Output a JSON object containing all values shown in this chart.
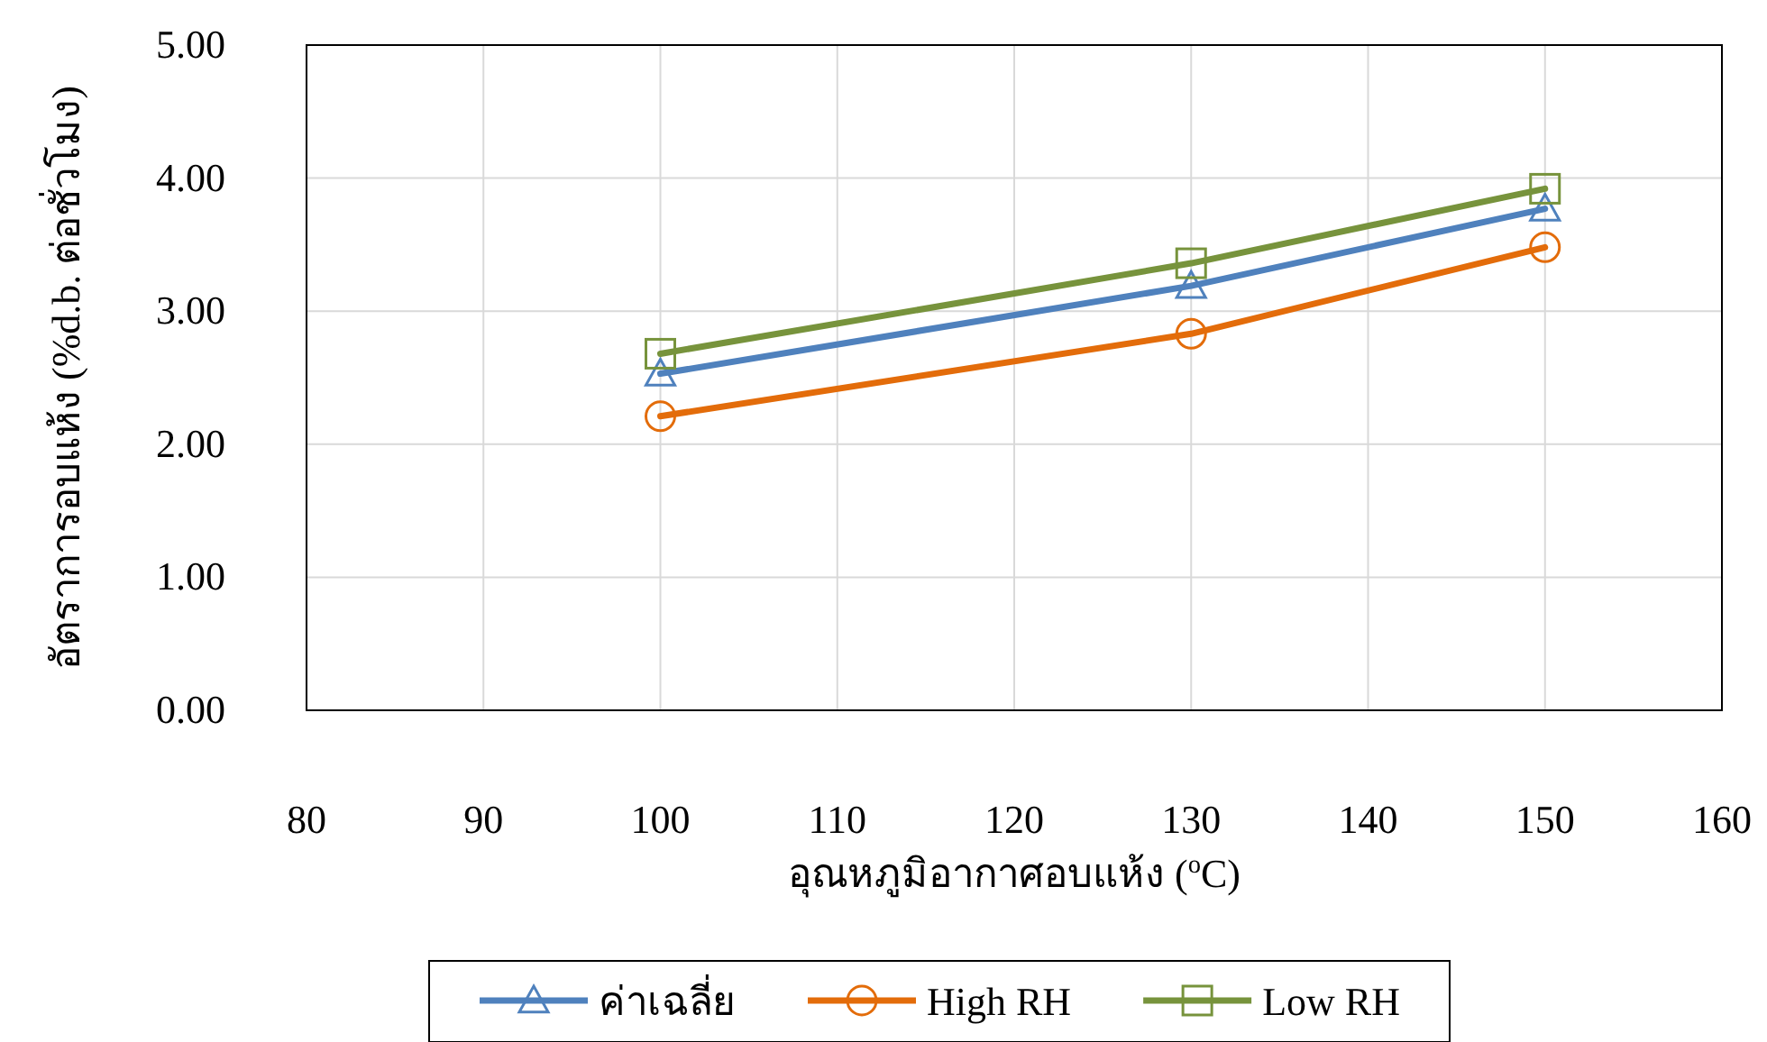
{
  "chart_data": {
    "type": "line",
    "xlabel": "อุณหภูมิอากาศอบแห้ง ($^{o}$C)",
    "ylabel": "อัตราการอบแห้ง (%d.b. ต่อชั่วโมง)",
    "xlim": [
      80,
      160
    ],
    "xticks": [
      80,
      90,
      100,
      110,
      120,
      130,
      140,
      150,
      160
    ],
    "ylim": [
      0,
      5
    ],
    "yticks": [
      {
        "value": 0,
        "label": "0.00"
      },
      {
        "value": 1,
        "label": "1.00"
      },
      {
        "value": 2,
        "label": "2.00"
      },
      {
        "value": 3,
        "label": "3.00"
      },
      {
        "value": 4,
        "label": "4.00"
      },
      {
        "value": 5,
        "label": "5.00"
      }
    ],
    "grid": true,
    "legend": "bottom",
    "line_style": "solid",
    "series": [
      {
        "name": "ค่าเฉลี่ย",
        "color": "#4f81bd",
        "marker": "triangle",
        "x": [
          100,
          130,
          150
        ],
        "values": [
          2.53,
          3.19,
          3.77
        ]
      },
      {
        "name": "High RH",
        "color": "#e36c0a",
        "marker": "circle",
        "x": [
          100,
          130,
          150
        ],
        "values": [
          2.21,
          2.83,
          3.48
        ]
      },
      {
        "name": "Low RH",
        "color": "#77933c",
        "marker": "square",
        "x": [
          100,
          130,
          150
        ],
        "values": [
          2.68,
          3.36,
          3.92
        ]
      }
    ]
  }
}
